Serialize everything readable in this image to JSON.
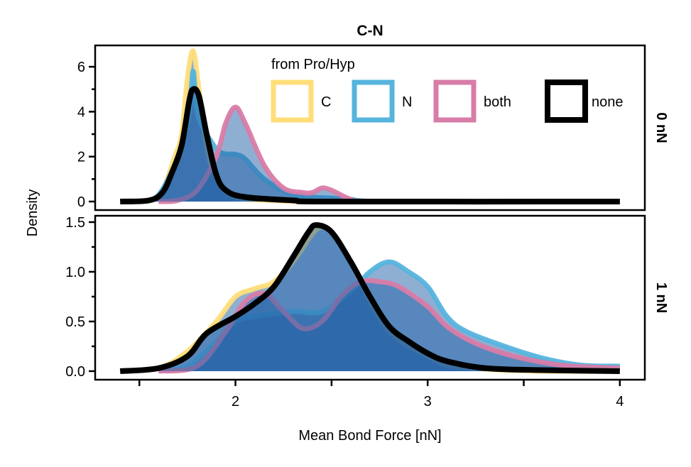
{
  "chart_data": {
    "type": "area",
    "title": "C-N",
    "xlabel": "Mean Bond Force [nN]",
    "ylabel": "Density",
    "xlim": [
      1.27,
      4.13
    ],
    "xticks": [
      2,
      3,
      4
    ],
    "xticklabels": [
      "2",
      "3",
      "4"
    ],
    "x_minor_ticks": [
      1.5,
      2.5,
      3.5
    ],
    "legend": {
      "title": "from Pro/Hyp",
      "placement": "top-right of upper panel",
      "entries": [
        "C",
        "N",
        "both",
        "none"
      ]
    },
    "colors": {
      "C": "#FFDE7A",
      "N": "#56B4DD",
      "both": "#D87CA8",
      "none": "#000000",
      "fill": "#1F5FA6"
    },
    "panels": [
      {
        "facet_label": "0 nN",
        "ylim": [
          -0.38,
          6.95
        ],
        "yticks": [
          0,
          2,
          4,
          6
        ],
        "yticklabels": [
          "0",
          "2",
          "4",
          "6"
        ],
        "y_minor_ticks": [
          1,
          3,
          5
        ],
        "series": [
          {
            "name": "C",
            "x": [
              1.4,
              1.55,
              1.62,
              1.68,
              1.72,
              1.75,
              1.78,
              1.81,
              1.85,
              1.9,
              2.0,
              2.2,
              2.5,
              4.0
            ],
            "y": [
              0,
              0.05,
              0.5,
              1.9,
              3,
              5.5,
              6.7,
              5,
              2.5,
              1,
              0.2,
              0.05,
              0,
              0
            ]
          },
          {
            "name": "N",
            "x": [
              1.5,
              1.6,
              1.7,
              1.76,
              1.78,
              1.8,
              1.85,
              1.92,
              2.0,
              2.05,
              2.15,
              2.3,
              2.5,
              2.6,
              2.8,
              4.0
            ],
            "y": [
              0,
              0.3,
              2,
              4,
              5.8,
              4,
              3,
              2.2,
              2.1,
              1.9,
              1,
              0.3,
              0.15,
              0.1,
              0,
              0
            ]
          },
          {
            "name": "both",
            "x": [
              1.6,
              1.7,
              1.8,
              1.9,
              1.95,
              2.0,
              2.05,
              2.15,
              2.25,
              2.35,
              2.4,
              2.45,
              2.5,
              2.6,
              2.7,
              4.0
            ],
            "y": [
              0,
              0.05,
              0.5,
              2,
              3.5,
              4.2,
              3.5,
              1.6,
              0.6,
              0.4,
              0.4,
              0.6,
              0.5,
              0.1,
              0,
              0
            ]
          },
          {
            "name": "none",
            "x": [
              1.4,
              1.55,
              1.62,
              1.67,
              1.72,
              1.76,
              1.78,
              1.81,
              1.85,
              1.9,
              1.95,
              2.05,
              2.3,
              2.5,
              4.0
            ],
            "y": [
              0,
              0.05,
              0.4,
              1.3,
              2.5,
              4.5,
              5.0,
              4.7,
              3,
              1.2,
              0.5,
              0.2,
              0.05,
              0,
              0
            ]
          }
        ]
      },
      {
        "facet_label": "1 nN",
        "ylim": [
          -0.086,
          1.564
        ],
        "yticks": [
          0,
          0.5,
          1.0,
          1.5
        ],
        "yticklabels": [
          "0.0",
          "0.5",
          "1.0",
          "1.5"
        ],
        "y_minor_ticks": [
          0.25,
          0.75,
          1.25
        ],
        "series": [
          {
            "name": "C",
            "x": [
              1.4,
              1.6,
              1.75,
              1.9,
              2.0,
              2.1,
              2.2,
              2.3,
              2.4,
              2.45,
              2.5,
              2.6,
              2.7,
              2.8,
              2.9,
              3.0,
              3.1,
              3.3,
              3.6,
              4.0
            ],
            "y": [
              0,
              0.03,
              0.2,
              0.5,
              0.75,
              0.83,
              0.9,
              1.1,
              1.38,
              1.45,
              1.4,
              1.1,
              0.7,
              0.4,
              0.25,
              0.15,
              0.06,
              0.02,
              0,
              0
            ]
          },
          {
            "name": "N",
            "x": [
              1.6,
              1.75,
              1.9,
              2.0,
              2.1,
              2.3,
              2.45,
              2.6,
              2.7,
              2.8,
              2.9,
              3.0,
              3.1,
              3.2,
              3.4,
              3.6,
              3.8,
              4.0
            ],
            "y": [
              0,
              0.05,
              0.3,
              0.5,
              0.55,
              0.6,
              0.6,
              0.8,
              1.0,
              1.1,
              1.0,
              0.85,
              0.55,
              0.4,
              0.25,
              0.13,
              0.06,
              0.05
            ]
          },
          {
            "name": "both",
            "x": [
              1.6,
              1.8,
              1.95,
              2.05,
              2.15,
              2.25,
              2.35,
              2.45,
              2.55,
              2.65,
              2.75,
              2.85,
              3.0,
              3.1,
              3.25,
              3.45,
              3.7,
              4.0
            ],
            "y": [
              0,
              0.05,
              0.4,
              0.7,
              0.78,
              0.6,
              0.43,
              0.5,
              0.75,
              0.9,
              0.9,
              0.85,
              0.65,
              0.45,
              0.28,
              0.15,
              0.06,
              0.03
            ]
          },
          {
            "name": "none",
            "x": [
              1.4,
              1.6,
              1.75,
              1.85,
              2.0,
              2.1,
              2.2,
              2.3,
              2.38,
              2.42,
              2.5,
              2.6,
              2.7,
              2.8,
              2.9,
              3.0,
              3.1,
              3.3,
              3.6,
              4.0
            ],
            "y": [
              0,
              0.03,
              0.15,
              0.38,
              0.55,
              0.68,
              0.85,
              1.15,
              1.4,
              1.47,
              1.4,
              1.1,
              0.75,
              0.45,
              0.3,
              0.18,
              0.1,
              0.03,
              0.01,
              0
            ]
          }
        ]
      }
    ]
  }
}
